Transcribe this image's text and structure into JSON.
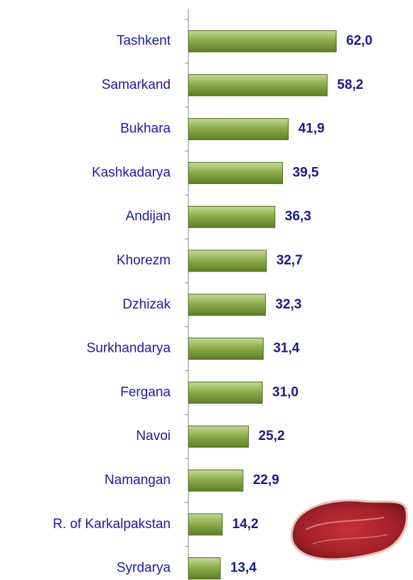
{
  "chart_data": {
    "type": "bar",
    "orientation": "horizontal",
    "categories": [
      "Tashkent",
      "Samarkand",
      "Bukhara",
      "Kashkadarya",
      "Andijan",
      "Khorezm",
      "Dzhizak",
      "Surkhandarya",
      "Fergana",
      "Navoi",
      "Namangan",
      "R. of Karkalpakstan",
      "Syrdarya"
    ],
    "values": [
      62.0,
      58.2,
      41.9,
      39.5,
      36.3,
      32.7,
      32.3,
      31.4,
      31.0,
      25.2,
      22.9,
      14.2,
      13.4
    ],
    "value_labels": [
      "62,0",
      "58,2",
      "41,9",
      "39,5",
      "36,3",
      "32,7",
      "32,3",
      "31,4",
      "31,0",
      "25,2",
      "22,9",
      "14,2",
      "13,4"
    ],
    "color": "#8cae4a"
  }
}
